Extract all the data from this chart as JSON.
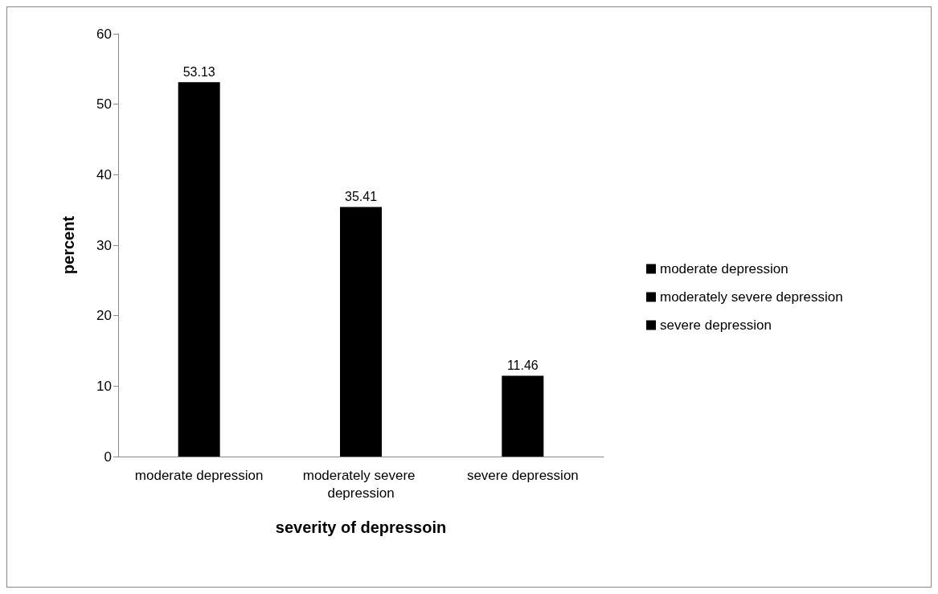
{
  "chart_data": {
    "type": "bar",
    "xlabel": "severity of depressoin",
    "ylabel": "percent",
    "categories": [
      "moderate depression",
      "moderately severe depression",
      "severe depression"
    ],
    "series": [
      {
        "name": "moderate depression",
        "color": "#000000",
        "values": [
          53.13,
          null,
          null
        ]
      },
      {
        "name": "moderately severe depression",
        "color": "#000000",
        "values": [
          null,
          35.41,
          null
        ]
      },
      {
        "name": "severe depression",
        "color": "#000000",
        "values": [
          null,
          null,
          11.46
        ]
      }
    ],
    "ylim": [
      0,
      60
    ],
    "yticks": [
      0,
      10,
      20,
      30,
      40,
      50,
      60
    ],
    "data_labels": true,
    "grid": false,
    "legend": "right"
  }
}
